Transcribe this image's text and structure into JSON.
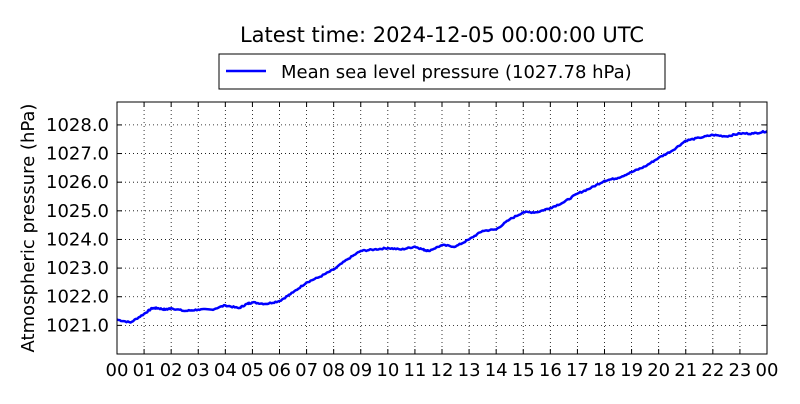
{
  "chart_data": {
    "type": "line",
    "title": "Latest time: 2024-12-05 00:00:00 UTC",
    "xlabel": "",
    "ylabel": "Atmospheric pressure (hPa)",
    "x_unit": "hour (UTC)",
    "xlim": [
      0,
      24
    ],
    "ylim": [
      1020.0,
      1028.8
    ],
    "x_ticks": [
      0,
      1,
      2,
      3,
      4,
      5,
      6,
      7,
      8,
      9,
      10,
      11,
      12,
      13,
      14,
      15,
      16,
      17,
      18,
      19,
      20,
      21,
      22,
      23,
      24
    ],
    "x_tick_labels": [
      "00",
      "01",
      "02",
      "03",
      "04",
      "05",
      "06",
      "07",
      "08",
      "09",
      "10",
      "11",
      "12",
      "13",
      "14",
      "15",
      "16",
      "17",
      "18",
      "19",
      "20",
      "21",
      "22",
      "23",
      "00"
    ],
    "y_ticks": [
      1021.0,
      1022.0,
      1023.0,
      1024.0,
      1025.0,
      1026.0,
      1027.0,
      1028.0
    ],
    "y_tick_labels": [
      "1021.0",
      "1022.0",
      "1023.0",
      "1024.0",
      "1025.0",
      "1026.0",
      "1027.0",
      "1028.0"
    ],
    "grid": true,
    "legend": {
      "placement": "top-center",
      "outside": true
    },
    "series": [
      {
        "name": "Mean sea level pressure (1027.78 hPa)",
        "color": "#0000ff",
        "x": [
          0.0,
          0.5,
          1.0,
          1.3,
          1.5,
          1.8,
          2.0,
          2.5,
          3.0,
          3.5,
          4.0,
          4.5,
          4.8,
          5.0,
          5.5,
          6.0,
          6.5,
          7.0,
          7.5,
          8.0,
          8.5,
          9.0,
          9.5,
          10.0,
          10.5,
          11.0,
          11.3,
          11.5,
          12.0,
          12.5,
          13.0,
          13.5,
          14.0,
          14.5,
          15.0,
          15.5,
          16.0,
          16.5,
          17.0,
          17.5,
          18.0,
          18.5,
          19.0,
          19.5,
          20.0,
          20.5,
          21.0,
          21.5,
          22.0,
          22.5,
          23.0,
          23.5,
          24.0
        ],
        "y": [
          1021.2,
          1021.1,
          1021.4,
          1021.6,
          1021.6,
          1021.55,
          1021.6,
          1021.5,
          1021.55,
          1021.55,
          1021.7,
          1021.6,
          1021.75,
          1021.8,
          1021.75,
          1021.85,
          1022.15,
          1022.5,
          1022.7,
          1022.95,
          1023.3,
          1023.6,
          1023.65,
          1023.7,
          1023.65,
          1023.75,
          1023.65,
          1023.6,
          1023.8,
          1023.75,
          1024.0,
          1024.3,
          1024.35,
          1024.7,
          1024.95,
          1024.95,
          1025.1,
          1025.3,
          1025.6,
          1025.8,
          1026.05,
          1026.15,
          1026.35,
          1026.55,
          1026.85,
          1027.1,
          1027.45,
          1027.55,
          1027.65,
          1027.6,
          1027.7,
          1027.7,
          1027.78
        ]
      }
    ]
  }
}
